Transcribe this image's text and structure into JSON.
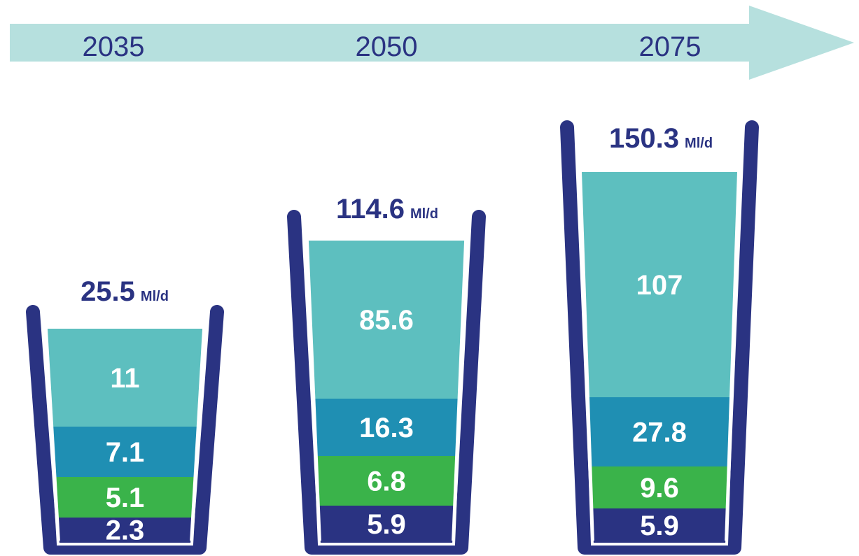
{
  "colors": {
    "arrow": "#b6e0de",
    "glass": "#2a3382",
    "segments": [
      "#2a3382",
      "#3ab34a",
      "#1f8fb3",
      "#5dbfbf"
    ]
  },
  "chart_data": {
    "type": "bar",
    "stacked": true,
    "categories": [
      "2035",
      "2050",
      "2075"
    ],
    "unit": "Ml/d",
    "totals": [
      25.5,
      114.6,
      150.3
    ],
    "series": [
      {
        "values": [
          2.3,
          5.9,
          5.9
        ],
        "labels": [
          "2.3",
          "5.9",
          "5.9"
        ]
      },
      {
        "values": [
          5.1,
          6.8,
          9.6
        ],
        "labels": [
          "5.1",
          "6.8",
          "9.6"
        ]
      },
      {
        "values": [
          7.1,
          16.3,
          27.8
        ],
        "labels": [
          "7.1",
          "16.3",
          "27.8"
        ]
      },
      {
        "values": [
          11,
          85.6,
          107
        ],
        "labels": [
          "11",
          "85.6",
          "107"
        ]
      }
    ],
    "total_labels": [
      "25.5",
      "114.6",
      "150.3"
    ]
  }
}
